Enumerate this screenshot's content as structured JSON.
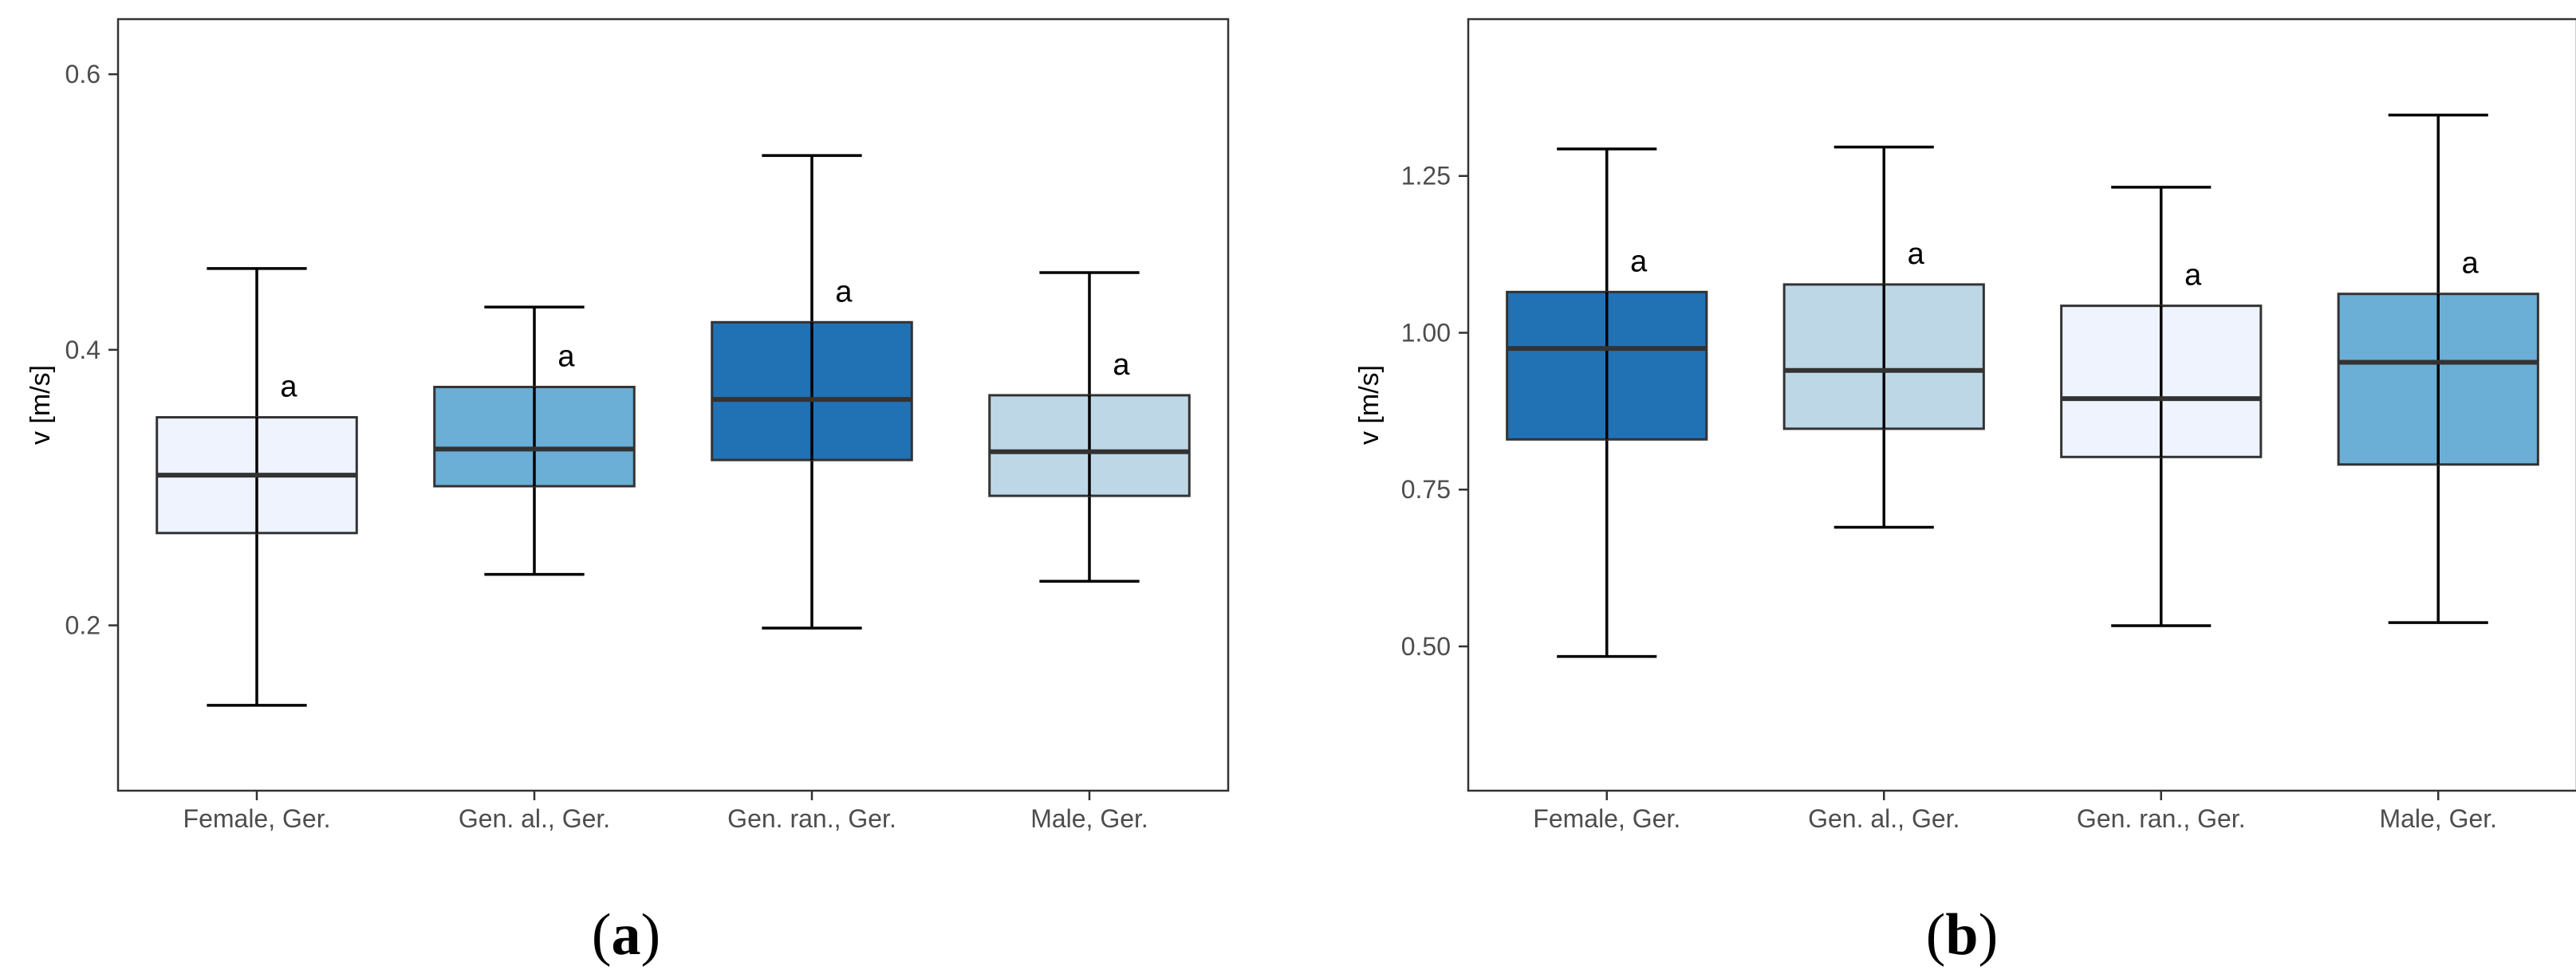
{
  "chart_data": [
    {
      "type": "box",
      "panel_label": "a",
      "ylabel": "v [m/s]",
      "ylim": [
        0.08,
        0.64
      ],
      "yticks": [
        0.2,
        0.4,
        0.6
      ],
      "ytick_labels": [
        "0.2",
        "0.4",
        "0.6"
      ],
      "categories": [
        "Female, Ger.",
        "Gen. al., Ger.",
        "Gen. ran., Ger.",
        "Male, Ger."
      ],
      "boxes": [
        {
          "whisker_low": 0.142,
          "q1": 0.267,
          "median": 0.309,
          "q3": 0.351,
          "whisker_high": 0.459,
          "color": "#eef3fe",
          "label": "a"
        },
        {
          "whisker_low": 0.237,
          "q1": 0.301,
          "median": 0.328,
          "q3": 0.373,
          "whisker_high": 0.431,
          "color": "#6baed6",
          "label": "a"
        },
        {
          "whisker_low": 0.198,
          "q1": 0.32,
          "median": 0.364,
          "q3": 0.42,
          "whisker_high": 0.541,
          "color": "#2171b5",
          "label": "a"
        },
        {
          "whisker_low": 0.232,
          "q1": 0.294,
          "median": 0.326,
          "q3": 0.367,
          "whisker_high": 0.456,
          "color": "#bdd7e7",
          "label": "a"
        }
      ]
    },
    {
      "type": "box",
      "panel_label": "b",
      "ylabel": "v [m/s]",
      "ylim": [
        0.27,
        1.5
      ],
      "yticks": [
        0.5,
        0.75,
        1.0,
        1.25
      ],
      "ytick_labels": [
        "0.50",
        "0.75",
        "1.00",
        "1.25"
      ],
      "categories": [
        "Female, Ger.",
        "Gen. al., Ger.",
        "Gen. ran., Ger.",
        "Male, Ger."
      ],
      "boxes": [
        {
          "whisker_low": 0.484,
          "q1": 0.83,
          "median": 0.975,
          "q3": 1.065,
          "whisker_high": 1.293,
          "color": "#2171b5",
          "label": "a"
        },
        {
          "whisker_low": 0.69,
          "q1": 0.847,
          "median": 0.94,
          "q3": 1.077,
          "whisker_high": 1.296,
          "color": "#bdd7e7",
          "label": "a"
        },
        {
          "whisker_low": 0.533,
          "q1": 0.802,
          "median": 0.895,
          "q3": 1.043,
          "whisker_high": 1.232,
          "color": "#eef3fe",
          "label": "a"
        },
        {
          "whisker_low": 0.538,
          "q1": 0.79,
          "median": 0.953,
          "q3": 1.062,
          "whisker_high": 1.347,
          "color": "#6baed6",
          "label": "a"
        }
      ]
    }
  ]
}
